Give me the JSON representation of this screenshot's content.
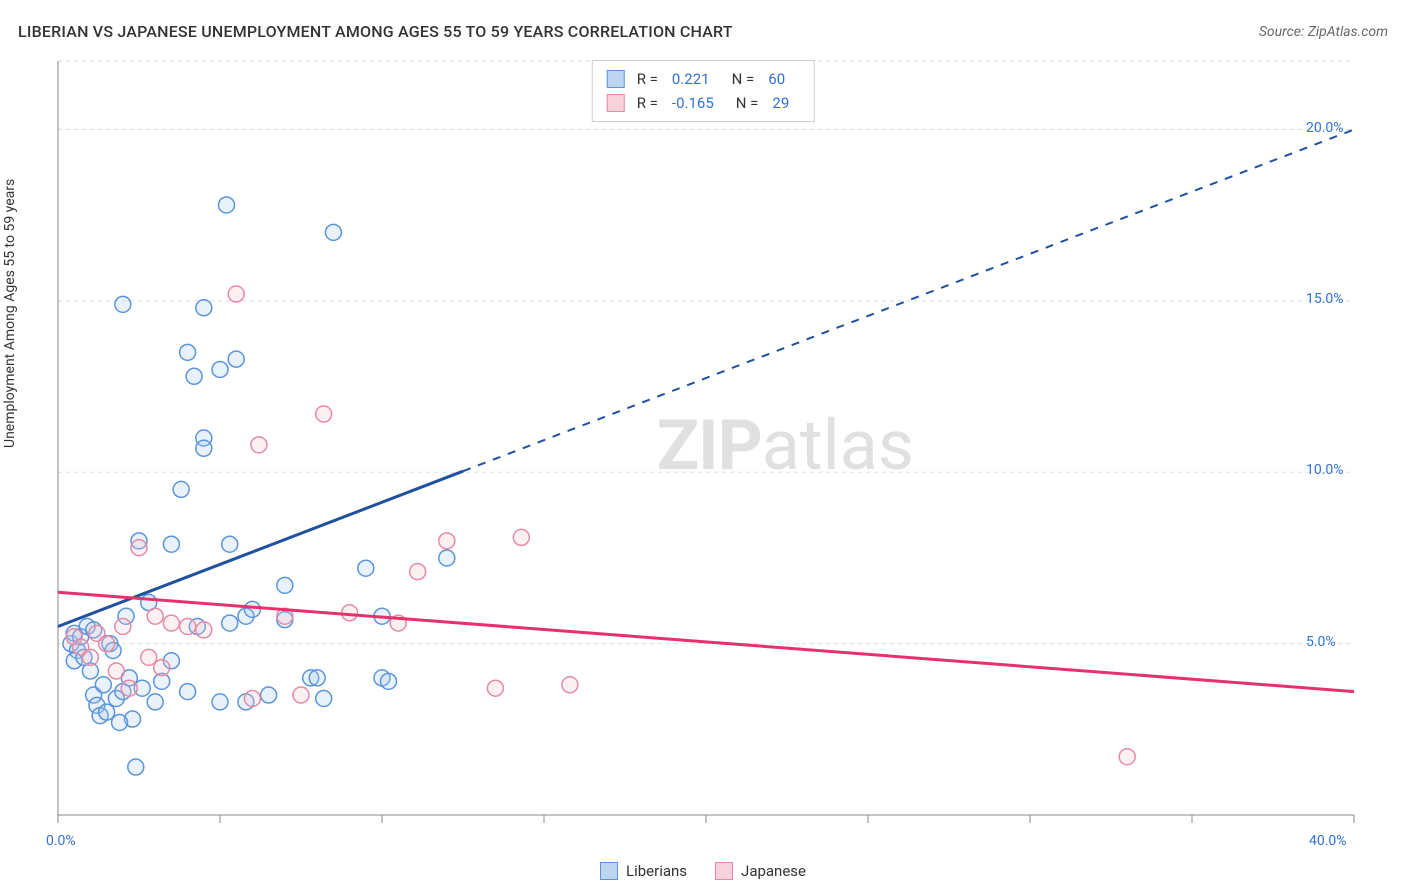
{
  "title": "LIBERIAN VS JAPANESE UNEMPLOYMENT AMONG AGES 55 TO 59 YEARS CORRELATION CHART",
  "source": "Source: ZipAtlas.com",
  "y_label": "Unemployment Among Ages 55 to 59 years",
  "watermark_bold": "ZIP",
  "watermark_light": "atlas",
  "chart": {
    "type": "scatter",
    "xlim": [
      0,
      40
    ],
    "ylim": [
      0,
      22
    ],
    "x_ticks": [
      0,
      5,
      10,
      15,
      20,
      25,
      30,
      35,
      40
    ],
    "x_tick_labels": {
      "0": "0.0%",
      "40": "40.0%"
    },
    "y_ticks": [
      0,
      5,
      10,
      15,
      20
    ],
    "y_tick_labels": {
      "5": "5.0%",
      "10": "10.0%",
      "15": "15.0%",
      "20": "20.0%"
    },
    "grid_color": "#dddddd",
    "grid_dash": "4,4",
    "axis_color": "#888888",
    "tick_label_color": "#3172d6",
    "background_color": "#ffffff",
    "marker_radius": 8,
    "marker_stroke_width": 1.5,
    "marker_fill_opacity": 0.25,
    "series": {
      "liberians": {
        "label": "Liberians",
        "color_stroke": "#5a95db",
        "color_fill": "#a8c8ed",
        "swatch_fill": "#bcd5f0",
        "swatch_border": "#5a95db",
        "points": [
          [
            0.4,
            5.0
          ],
          [
            0.5,
            5.3
          ],
          [
            0.6,
            4.8
          ],
          [
            0.7,
            5.2
          ],
          [
            0.5,
            4.5
          ],
          [
            0.8,
            4.6
          ],
          [
            0.9,
            5.5
          ],
          [
            1.0,
            4.2
          ],
          [
            1.1,
            3.5
          ],
          [
            1.2,
            3.2
          ],
          [
            1.3,
            2.9
          ],
          [
            1.4,
            3.8
          ],
          [
            1.5,
            3.0
          ],
          [
            1.6,
            5.0
          ],
          [
            1.7,
            4.8
          ],
          [
            1.8,
            3.4
          ],
          [
            2.0,
            3.6
          ],
          [
            2.1,
            5.8
          ],
          [
            2.2,
            4.0
          ],
          [
            2.3,
            2.8
          ],
          [
            2.4,
            1.4
          ],
          [
            2.5,
            8.0
          ],
          [
            2.6,
            3.7
          ],
          [
            2.8,
            6.2
          ],
          [
            3.0,
            3.3
          ],
          [
            3.2,
            3.9
          ],
          [
            3.5,
            4.5
          ],
          [
            3.5,
            7.9
          ],
          [
            3.8,
            9.5
          ],
          [
            4.0,
            3.6
          ],
          [
            4.0,
            13.5
          ],
          [
            4.2,
            12.8
          ],
          [
            4.3,
            5.5
          ],
          [
            4.5,
            11.0
          ],
          [
            4.5,
            10.7
          ],
          [
            4.5,
            14.8
          ],
          [
            5.0,
            3.3
          ],
          [
            5.0,
            13.0
          ],
          [
            5.2,
            17.8
          ],
          [
            5.3,
            5.6
          ],
          [
            5.3,
            7.9
          ],
          [
            5.5,
            13.3
          ],
          [
            5.8,
            3.3
          ],
          [
            5.8,
            5.8
          ],
          [
            6.0,
            6.0
          ],
          [
            6.5,
            3.5
          ],
          [
            7.0,
            5.7
          ],
          [
            7.0,
            6.7
          ],
          [
            7.8,
            4.0
          ],
          [
            8.0,
            4.0
          ],
          [
            8.2,
            3.4
          ],
          [
            8.5,
            17.0
          ],
          [
            9.5,
            7.2
          ],
          [
            10.0,
            4.0
          ],
          [
            10.0,
            5.8
          ],
          [
            10.2,
            3.9
          ],
          [
            12.0,
            7.5
          ],
          [
            1.1,
            5.4
          ],
          [
            1.9,
            2.7
          ],
          [
            2.0,
            14.9
          ]
        ],
        "trend": {
          "color": "#2050a0",
          "width": 3,
          "solid_end_x": 12.5,
          "start": [
            0.0,
            5.5
          ],
          "end": [
            40.0,
            20.0
          ]
        }
      },
      "japanese": {
        "label": "Japanese",
        "color_stroke": "#e68aa6",
        "color_fill": "#f5c2d1",
        "swatch_fill": "#f7d1dc",
        "swatch_border": "#e68aa6",
        "points": [
          [
            0.5,
            5.2
          ],
          [
            0.7,
            4.9
          ],
          [
            1.0,
            4.6
          ],
          [
            1.2,
            5.3
          ],
          [
            1.5,
            5.0
          ],
          [
            1.8,
            4.2
          ],
          [
            2.0,
            5.5
          ],
          [
            2.2,
            3.7
          ],
          [
            2.5,
            7.8
          ],
          [
            2.8,
            4.6
          ],
          [
            3.0,
            5.8
          ],
          [
            3.2,
            4.3
          ],
          [
            3.5,
            5.6
          ],
          [
            4.0,
            5.5
          ],
          [
            4.5,
            5.4
          ],
          [
            5.5,
            15.2
          ],
          [
            6.0,
            3.4
          ],
          [
            6.2,
            10.8
          ],
          [
            7.0,
            5.8
          ],
          [
            7.5,
            3.5
          ],
          [
            8.2,
            11.7
          ],
          [
            9.0,
            5.9
          ],
          [
            10.5,
            5.6
          ],
          [
            11.1,
            7.1
          ],
          [
            12.0,
            8.0
          ],
          [
            13.5,
            3.7
          ],
          [
            14.3,
            8.1
          ],
          [
            15.8,
            3.8
          ],
          [
            33.0,
            1.7
          ]
        ],
        "trend": {
          "color": "#e6316a",
          "width": 3,
          "solid_end_x": 40,
          "start": [
            0.0,
            6.5
          ],
          "end": [
            40.0,
            3.6
          ]
        }
      }
    }
  },
  "legend_top": [
    {
      "swatch": "liberians",
      "r_label": "R =",
      "r_value": "0.221",
      "n_label": "N =",
      "n_value": "60"
    },
    {
      "swatch": "japanese",
      "r_label": "R =",
      "r_value": "-0.165",
      "n_label": "N =",
      "n_value": "29"
    }
  ]
}
